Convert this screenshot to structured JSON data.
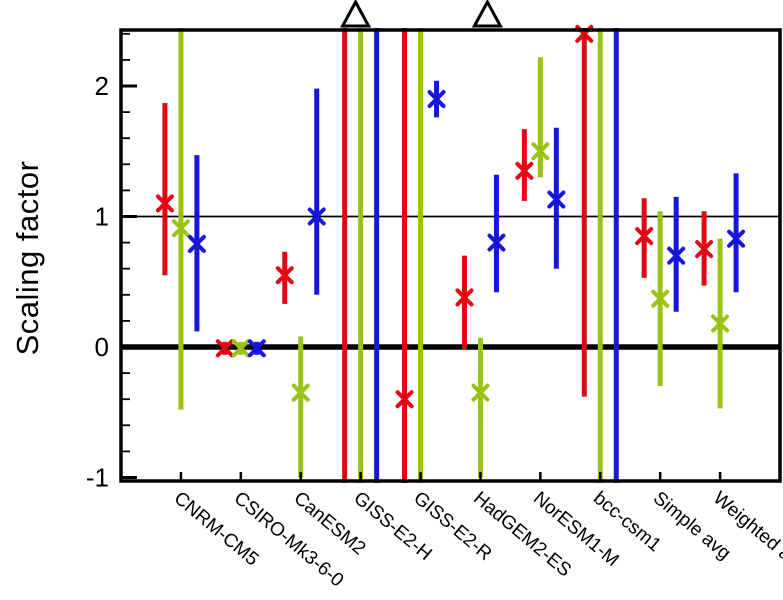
{
  "chart_data": {
    "type": "errorbar",
    "title": "",
    "ylabel": "Scaling factor",
    "xlabel": "",
    "ylim": [
      -1.03,
      2.43
    ],
    "yticks": [
      -1,
      0,
      1,
      2
    ],
    "minor_tick_step": 0.2,
    "grid": false,
    "legend": false,
    "reference_lines": [
      {
        "y": 0,
        "style": "thick"
      },
      {
        "y": 1,
        "style": "thin"
      }
    ],
    "series": [
      {
        "name": "red",
        "color": "#e30613"
      },
      {
        "name": "green",
        "color": "#9bc313"
      },
      {
        "name": "blue",
        "color": "#1616dc"
      }
    ],
    "categories": [
      "CNRM-CM5",
      "CSIRO-Mk3-6-0",
      "CanESM2",
      "GISS-E2-H",
      "GISS-E2-R",
      "HadGEM2-ES",
      "NorESM1-M",
      "bcc-csm1",
      "Simple avg",
      "Weighted avg"
    ],
    "groups": [
      {
        "label": "CNRM-CM5",
        "bars": [
          {
            "series": "red",
            "center": 1.1,
            "lo": 0.55,
            "hi": 1.87
          },
          {
            "series": "green",
            "center": 0.91,
            "lo": -0.48,
            "hi": null,
            "clip_hi": true
          },
          {
            "series": "blue",
            "center": 0.79,
            "lo": 0.12,
            "hi": 1.47
          }
        ]
      },
      {
        "label": "CSIRO-Mk3-6-0",
        "bars": [
          {
            "series": "red",
            "center": -0.01,
            "lo": -0.06,
            "hi": 0.04
          },
          {
            "series": "green",
            "center": -0.01,
            "lo": -0.06,
            "hi": 0.04
          },
          {
            "series": "blue",
            "center": -0.01,
            "lo": -0.06,
            "hi": 0.04
          }
        ]
      },
      {
        "label": "CanESM2",
        "bars": [
          {
            "series": "red",
            "center": 0.55,
            "lo": 0.33,
            "hi": 0.73
          },
          {
            "series": "green",
            "center": -0.35,
            "lo": -1.0,
            "hi": 0.08
          },
          {
            "series": "blue",
            "center": 1.0,
            "lo": 0.4,
            "hi": 1.98
          }
        ]
      },
      {
        "label": "GISS-E2-H",
        "offscale": true,
        "bars": [
          {
            "series": "red",
            "center": null,
            "lo": null,
            "hi": null,
            "clip_lo": true,
            "clip_hi": true
          },
          {
            "series": "green",
            "center": null,
            "lo": null,
            "hi": null,
            "clip_lo": true,
            "clip_hi": true
          },
          {
            "series": "blue",
            "center": null,
            "lo": null,
            "hi": null,
            "clip_lo": true,
            "clip_hi": true
          }
        ]
      },
      {
        "label": "GISS-E2-R",
        "offscale": true,
        "bars": [
          {
            "series": "red",
            "center": -0.4,
            "lo": null,
            "hi": null,
            "clip_lo": true,
            "clip_hi": true
          },
          {
            "series": "green",
            "center": null,
            "lo": null,
            "hi": null,
            "clip_lo": true,
            "clip_hi": true
          },
          {
            "series": "blue",
            "center": 1.9,
            "lo": 1.76,
            "hi": 2.04
          }
        ]
      },
      {
        "label": "HadGEM2-ES",
        "bars": [
          {
            "series": "red",
            "center": 0.38,
            "lo": -0.02,
            "hi": 0.7
          },
          {
            "series": "green",
            "center": -0.35,
            "lo": -1.0,
            "hi": 0.07
          },
          {
            "series": "blue",
            "center": 0.8,
            "lo": 0.42,
            "hi": 1.32
          }
        ]
      },
      {
        "label": "NorESM1-M",
        "bars": [
          {
            "series": "red",
            "center": 1.35,
            "lo": 1.12,
            "hi": 1.67
          },
          {
            "series": "green",
            "center": 1.5,
            "lo": 1.3,
            "hi": 2.22
          },
          {
            "series": "blue",
            "center": 1.13,
            "lo": 0.6,
            "hi": 1.68
          }
        ]
      },
      {
        "label": "bcc-csm1",
        "bars": [
          {
            "series": "red",
            "center": 2.4,
            "lo": -0.38,
            "hi": null,
            "clip_hi": true
          },
          {
            "series": "green",
            "center": null,
            "lo": null,
            "hi": null,
            "clip_lo": true,
            "clip_hi": true
          },
          {
            "series": "blue",
            "center": null,
            "lo": null,
            "hi": null,
            "clip_lo": true,
            "clip_hi": true
          }
        ]
      },
      {
        "label": "Simple avg",
        "bars": [
          {
            "series": "red",
            "center": 0.85,
            "lo": 0.53,
            "hi": 1.14
          },
          {
            "series": "green",
            "center": 0.37,
            "lo": -0.3,
            "hi": 1.04
          },
          {
            "series": "blue",
            "center": 0.7,
            "lo": 0.27,
            "hi": 1.15
          }
        ]
      },
      {
        "label": "Weighted avg",
        "bars": [
          {
            "series": "red",
            "center": 0.75,
            "lo": 0.47,
            "hi": 1.04
          },
          {
            "series": "green",
            "center": 0.18,
            "lo": -0.47,
            "hi": 0.83
          },
          {
            "series": "blue",
            "center": 0.83,
            "lo": 0.42,
            "hi": 1.33
          }
        ]
      }
    ],
    "offscale_triangles": [
      {
        "x_frac": 0.356
      },
      {
        "x_frac": 0.556
      }
    ]
  }
}
